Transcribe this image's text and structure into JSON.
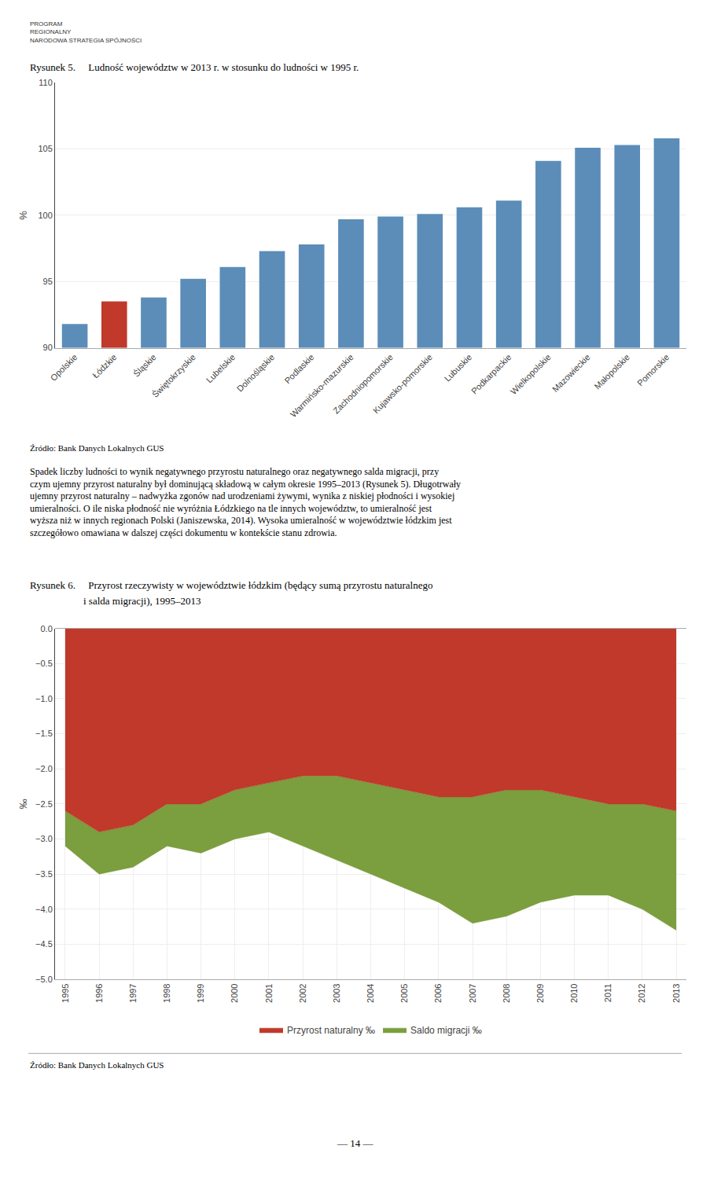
{
  "chart_data": [
    {
      "type": "bar",
      "title": "Rysunek 5.  Ludność województw w 2013 r. w stosunku do ludności w 1995 r.",
      "categories": [
        "Opolskie",
        "Łódzkie",
        "Śląskie",
        "Świętokrzyskie",
        "Lubelskie",
        "Dolnośląskie",
        "Podlaskie",
        "Warmińsko-mazurskie",
        "Zachodniopomorskie",
        "Kujawsko-pomorskie",
        "Lubuskie",
        "Podkarpackie",
        "Wielkopolskie",
        "Mazowieckie",
        "Małopolskie",
        "Pomorskie"
      ],
      "values": [
        91.8,
        93.5,
        93.8,
        95.2,
        96.1,
        97.3,
        97.8,
        99.7,
        99.9,
        100.1,
        100.6,
        101.1,
        104.1,
        105.1,
        105.3,
        105.8
      ],
      "colors": [
        "#5B8DB8",
        "#C0392B",
        "#5B8DB8",
        "#5B8DB8",
        "#5B8DB8",
        "#5B8DB8",
        "#5B8DB8",
        "#5B8DB8",
        "#5B8DB8",
        "#5B8DB8",
        "#5B8DB8",
        "#5B8DB8",
        "#5B8DB8",
        "#5B8DB8",
        "#5B8DB8",
        "#5B8DB8"
      ],
      "ylim": [
        90,
        110
      ],
      "yticks": [
        90,
        95,
        100,
        105,
        110
      ],
      "ylabel": "%",
      "grid": "y",
      "annotations": [
        "PROGRAM\nREGIONALNY\nNARODOWA STRATEGIA SPÓJNOŚCI",
        "Źródło: Bank Danych Lokalnych GUS",
        "Spadek liczby ludności to wynik negatywnego przyrostu naturalnego oraz negatywnego salda migracji, przy czym ujemny przyrost naturalny był dominującą składową w całym okresie 1995–2013 (Rysunek 5). Długotrwały ujemny przyrost naturalny – nadwyżka zgonów nad urodzeniami żywymi, wynika z niskiej płodności i wysokiej umieralności. O ile niska płodność nie wyróżnia Łódzkiego na tle innych województw, to umieralność jest wyższa niż w innych regionach Polski (Janiszewska, 2014). Wysoka umieralność w województwie łódzkim jest szczegółowo omawiana w dalszej części dokumentu w kontekście stanu zdrowia."
      ]
    },
    {
      "type": "area",
      "stacked": true,
      "title": "Rysunek 6.  Przyrost rzeczywisty w województwie łódzkim (będący sumą przyrostu naturalnego",
      "subtitle": "i salda migracji), 1995–2013",
      "x": [
        1995,
        1996,
        1997,
        1998,
        1999,
        2000,
        2001,
        2002,
        2003,
        2004,
        2005,
        2006,
        2007,
        2008,
        2009,
        2010,
        2011,
        2012,
        2013
      ],
      "xlim": [
        1994.7,
        2013.3
      ],
      "xticks": [
        1995,
        1996,
        1997,
        1998,
        1999,
        2000,
        2001,
        2002,
        2003,
        2004,
        2005,
        2006,
        2007,
        2008,
        2009,
        2010,
        2011,
        2012,
        2013
      ],
      "series": [
        {
          "name": "Przyrost naturalny ‰",
          "color": "#C0392B",
          "values": [
            -2.6,
            -2.9,
            -2.8,
            -2.5,
            -2.5,
            -2.3,
            -2.2,
            -2.1,
            -2.1,
            -2.2,
            -2.3,
            -2.4,
            -2.4,
            -2.3,
            -2.3,
            -2.4,
            -2.5,
            -2.5,
            -2.6
          ]
        },
        {
          "name": "Saldo migracji ‰",
          "color": "#7B9E3E",
          "values": [
            -0.5,
            -0.6,
            -0.6,
            -0.6,
            -0.7,
            -0.7,
            -0.7,
            -1.0,
            -1.2,
            -1.3,
            -1.4,
            -1.5,
            -1.8,
            -1.8,
            -1.6,
            -1.4,
            -1.3,
            -1.5,
            -1.7
          ]
        }
      ],
      "ylim": [
        -5.0,
        0.0
      ],
      "yticks": [
        {
          "value": 0.0,
          "label": "0.0"
        },
        {
          "value": -0.5,
          "label": "−0.5"
        },
        {
          "value": -1.0,
          "label": "−1.0"
        },
        {
          "value": -1.5,
          "label": "−1.5"
        },
        {
          "value": -2.0,
          "label": "−2.0"
        },
        {
          "value": -2.5,
          "label": "−2.5"
        },
        {
          "value": -3.0,
          "label": "−3.0"
        },
        {
          "value": -3.5,
          "label": "−3.5"
        },
        {
          "value": -4.0,
          "label": "−4.0"
        },
        {
          "value": -4.5,
          "label": "−4.5"
        },
        {
          "value": -5.0,
          "label": "−5.0"
        }
      ],
      "ylabel": "‰",
      "grid": true,
      "legend": "bottom",
      "annotations": [
        "Źródło: Bank Danych Lokalnych GUS",
        "— 14 —"
      ]
    }
  ]
}
